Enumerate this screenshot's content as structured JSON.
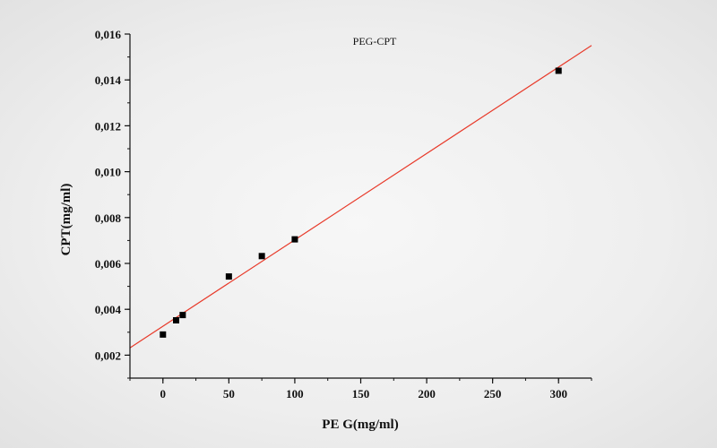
{
  "chart_data": {
    "type": "scatter",
    "title": "",
    "xlabel": "PE G(mg/ml)",
    "ylabel": "CPT(mg/ml)",
    "xlim": [
      -25,
      325
    ],
    "ylim": [
      0.001,
      0.016
    ],
    "x_ticks": [
      0,
      50,
      100,
      150,
      200,
      250,
      300
    ],
    "x_tick_labels": [
      "0",
      "50",
      "100",
      "150",
      "200",
      "250",
      "300"
    ],
    "y_ticks": [
      0.002,
      0.004,
      0.006,
      0.008,
      0.01,
      0.012,
      0.014,
      0.016
    ],
    "y_tick_labels": [
      "0,002",
      "0,004",
      "0,006",
      "0,008",
      "0,010",
      "0,012",
      "0,014",
      "0,016"
    ],
    "grid": false,
    "legend_position": "top-center",
    "series": [
      {
        "name": "PEG-CPT",
        "color": "#000000",
        "marker": "square",
        "x": [
          0,
          10,
          15,
          50,
          75,
          100,
          300
        ],
        "y": [
          0.0029,
          0.00352,
          0.00375,
          0.00543,
          0.00632,
          0.00705,
          0.0144
        ]
      }
    ],
    "fit_line": {
      "color": "#e83a2a",
      "x": [
        -25,
        325
      ],
      "y": [
        0.00232,
        0.0155
      ]
    }
  }
}
